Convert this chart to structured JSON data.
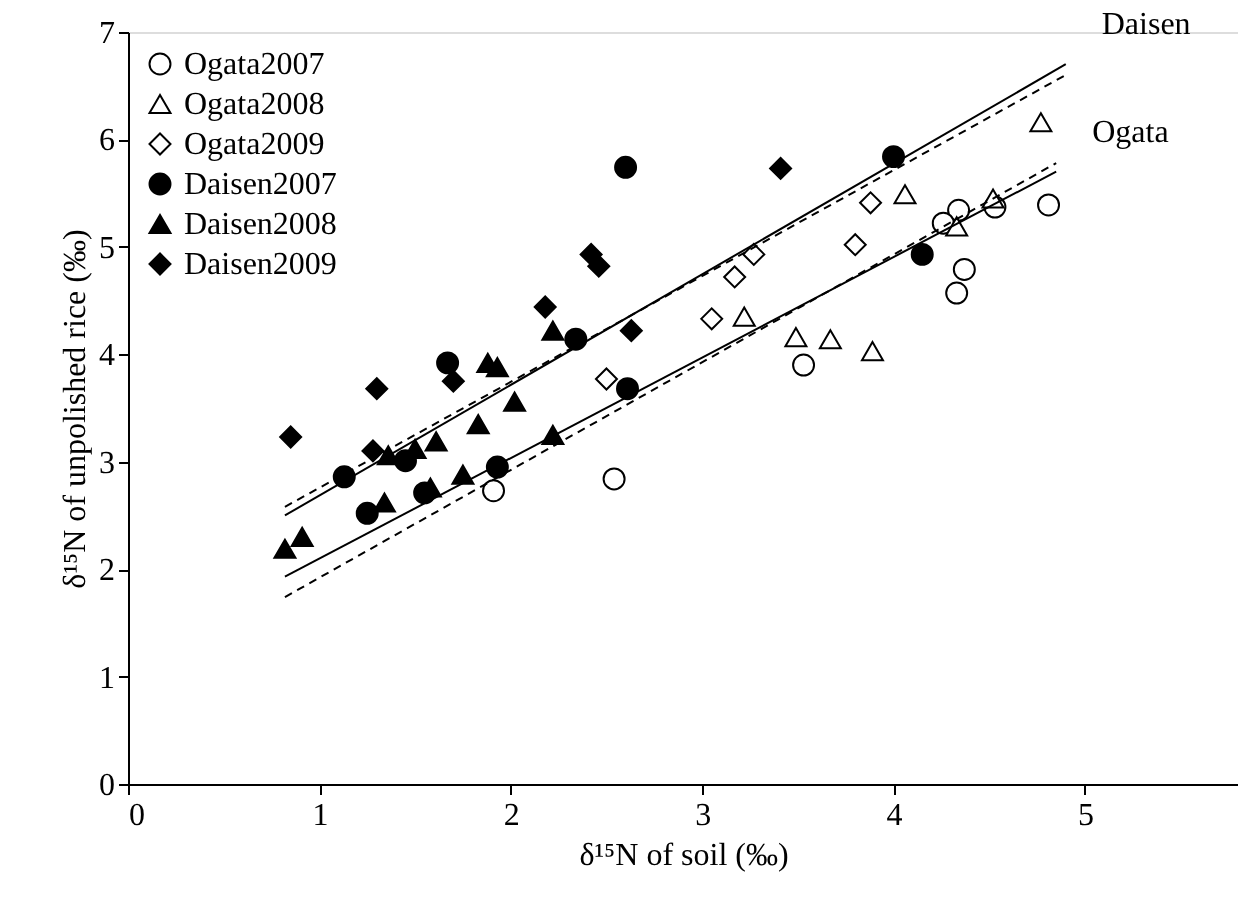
{
  "chart_data": {
    "type": "scatter",
    "xlabel": "δ¹⁵N of soil (‰)",
    "ylabel": "δ¹⁵N of unpolished rice (‰)",
    "xlim": [
      0,
      5.8
    ],
    "ylim": [
      0,
      7
    ],
    "xticks": [
      0,
      1,
      2,
      3,
      4,
      5
    ],
    "yticks": [
      0,
      1,
      2,
      3,
      4,
      5,
      6,
      7
    ],
    "grid": false,
    "legend": "top left",
    "series": [
      {
        "name": "Ogata2007",
        "marker": "circle",
        "color": "#ffffff",
        "x": [
          1.91,
          2.54,
          3.53,
          4.34,
          4.26,
          4.53,
          4.81,
          4.37,
          4.33
        ],
        "values": [
          2.73,
          2.84,
          3.9,
          5.34,
          5.22,
          5.37,
          5.39,
          4.79,
          4.57
        ]
      },
      {
        "name": "Ogata2008",
        "marker": "triangle",
        "color": "#ffffff",
        "x": [
          4.77,
          4.06,
          4.52,
          4.33,
          3.22,
          3.49,
          3.67,
          3.89
        ],
        "values": [
          6.16,
          5.49,
          5.45,
          5.19,
          4.35,
          4.16,
          4.14,
          4.03
        ]
      },
      {
        "name": "Ogata2009",
        "marker": "diamond",
        "color": "#ffffff",
        "x": [
          3.88,
          3.8,
          3.27,
          3.17,
          3.05,
          2.5
        ],
        "values": [
          5.41,
          5.02,
          4.93,
          4.72,
          4.33,
          3.77
        ]
      },
      {
        "name": "Daisen2007",
        "marker": "circle",
        "color": "#000000",
        "x": [
          2.6,
          4.0,
          4.15,
          2.34,
          2.61,
          1.67,
          1.93,
          1.13,
          1.45,
          1.25,
          1.55
        ],
        "values": [
          5.74,
          5.84,
          4.93,
          4.14,
          3.68,
          3.92,
          2.95,
          2.86,
          3.01,
          2.52,
          2.71
        ]
      },
      {
        "name": "Daisen2008",
        "marker": "triangle",
        "color": "#000000",
        "x": [
          0.82,
          0.91,
          1.34,
          1.58,
          1.75,
          1.36,
          1.5,
          1.61,
          1.83,
          2.02,
          1.88,
          1.93,
          2.22,
          2.22
        ],
        "values": [
          2.19,
          2.3,
          2.62,
          2.76,
          2.88,
          3.06,
          3.12,
          3.19,
          3.35,
          3.56,
          3.92,
          3.88,
          4.22,
          3.25
        ]
      },
      {
        "name": "Daisen2009",
        "marker": "diamond",
        "color": "#000000",
        "x": [
          0.85,
          1.3,
          1.28,
          1.7,
          2.18,
          2.42,
          2.46,
          2.63,
          3.41
        ],
        "values": [
          3.23,
          3.68,
          3.1,
          3.75,
          4.44,
          4.93,
          4.82,
          4.22,
          5.73
        ]
      },
      {
        "name": "Daisen",
        "type": "line",
        "line_style": "solid",
        "color": "#000000",
        "x": [
          0.82,
          4.9
        ],
        "values": [
          2.5,
          6.7
        ]
      },
      {
        "type": "line",
        "line_style": "dashed",
        "color": "#000000",
        "x": [
          0.82,
          4.9
        ],
        "values": [
          2.58,
          6.6
        ]
      },
      {
        "name": "Ogata",
        "type": "line",
        "line_style": "solid",
        "color": "#000000",
        "x": [
          0.82,
          4.85
        ],
        "values": [
          1.93,
          5.7
        ]
      },
      {
        "type": "line",
        "line_style": "dashed",
        "color": "#000000",
        "x": [
          0.82,
          4.85
        ],
        "values": [
          1.74,
          5.78
        ]
      }
    ]
  }
}
